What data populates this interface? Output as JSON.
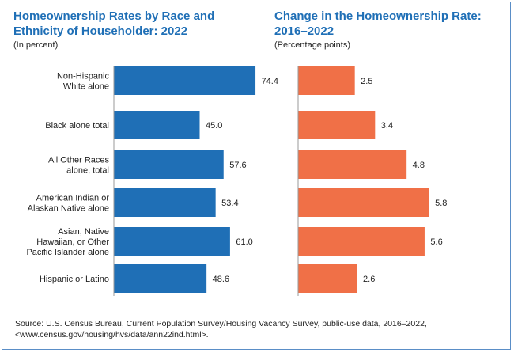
{
  "chart_data": [
    {
      "type": "bar",
      "orientation": "horizontal",
      "title_lines": [
        "Homeownership Rates by Race and",
        "Ethnicity of Householder: 2022"
      ],
      "subtitle": "(In percent)",
      "color": "#1f6fb6",
      "categories": [
        [
          "Non-Hispanic",
          "White alone"
        ],
        [
          "Black alone total"
        ],
        [
          "All Other Races",
          "alone, total"
        ],
        [
          "American Indian or",
          "Alaskan Native alone"
        ],
        [
          "Asian, Native",
          "Hawaiian, or Other",
          "Pacific Islander alone"
        ],
        [
          "Hispanic or Latino"
        ]
      ],
      "values": [
        74.4,
        45.0,
        57.6,
        53.4,
        61.0,
        48.6
      ],
      "value_labels": [
        "74.4",
        "45.0",
        "57.6",
        "53.4",
        "61.0",
        "48.6"
      ],
      "xlim": [
        0,
        100
      ]
    },
    {
      "type": "bar",
      "orientation": "horizontal",
      "title_lines": [
        "Change in the Homeownership Rate:",
        "2016–2022"
      ],
      "subtitle": "(Percentage points)",
      "color": "#f07047",
      "values": [
        2.5,
        3.4,
        4.8,
        5.8,
        5.6,
        2.6
      ],
      "value_labels": [
        "2.5",
        "3.4",
        "4.8",
        "5.8",
        "5.6",
        "2.6"
      ],
      "xlim": [
        0,
        8.5
      ]
    }
  ],
  "source_lines": [
    "Source: U.S. Census Bureau, Current Population Survey/Housing Vacancy Survey, public-use data, 2016–2022,",
    "<www.census.gov/housing/hvs/data/ann22ind.html>."
  ]
}
